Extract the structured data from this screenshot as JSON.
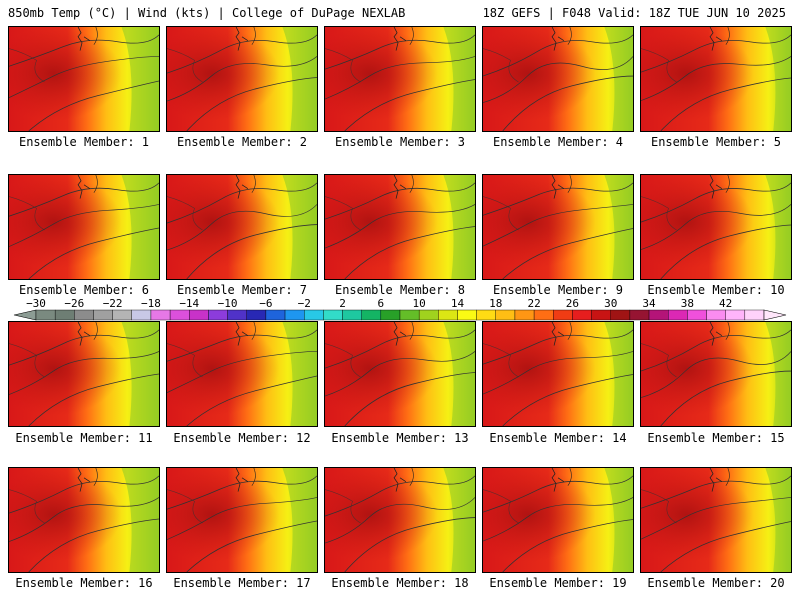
{
  "header": {
    "title": "850mb Temp (°C) | Wind (kts) | College of DuPage NEXLAB",
    "valid": "18Z GEFS | F048 Valid: 18Z TUE JUN 10 2025"
  },
  "members": [
    "Ensemble Member: 1",
    "Ensemble Member: 2",
    "Ensemble Member: 3",
    "Ensemble Member: 4",
    "Ensemble Member: 5",
    "Ensemble Member: 6",
    "Ensemble Member: 7",
    "Ensemble Member: 8",
    "Ensemble Member: 9",
    "Ensemble Member: 10",
    "Ensemble Member: 11",
    "Ensemble Member: 12",
    "Ensemble Member: 13",
    "Ensemble Member: 14",
    "Ensemble Member: 15",
    "Ensemble Member: 16",
    "Ensemble Member: 17",
    "Ensemble Member: 18",
    "Ensemble Member: 19",
    "Ensemble Member: 20"
  ],
  "colorbar": {
    "tick_labels": [
      "−30",
      "−26",
      "−22",
      "−18",
      "−14",
      "−10",
      "−6",
      "−2",
      "2",
      "6",
      "10",
      "14",
      "18",
      "22",
      "26",
      "30",
      "34",
      "38",
      "42"
    ],
    "colors": [
      "#7a8a80",
      "#6e7e74",
      "#8c8c8c",
      "#a0a0a0",
      "#b4b4b4",
      "#c8c8e6",
      "#e678e6",
      "#dc50dc",
      "#c832c8",
      "#8c3cdc",
      "#5032c8",
      "#2828b4",
      "#1e64dc",
      "#1e96f0",
      "#28c8e6",
      "#32dcc8",
      "#1ec8a0",
      "#14b464",
      "#28a028",
      "#64be28",
      "#a0d21e",
      "#dce614",
      "#fafa14",
      "#ffdc14",
      "#ffbe14",
      "#ff9614",
      "#ff6e14",
      "#f03c14",
      "#e61e1e",
      "#c81414",
      "#a01414",
      "#961432",
      "#b41478",
      "#dc28b4",
      "#f050dc",
      "#fa8cf0",
      "#ffb4fa",
      "#ffd2fa"
    ]
  }
}
